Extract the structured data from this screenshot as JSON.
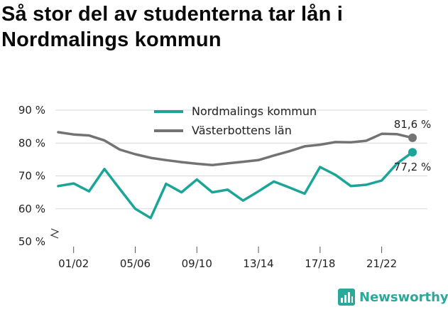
{
  "title": "Så stor del av studenterna tar lån i Nordmalings kommun",
  "brand": "Newsworthy",
  "colors": {
    "series1": "#1aa598",
    "series2": "#737374",
    "grid": "#d9d9d9",
    "text": "#222222",
    "brand": "#2aa89a"
  },
  "chart_data": {
    "type": "line",
    "x": [
      "00/01",
      "01/02",
      "02/03",
      "03/04",
      "04/05",
      "05/06",
      "06/07",
      "07/08",
      "08/09",
      "09/10",
      "10/11",
      "11/12",
      "12/13",
      "13/14",
      "14/15",
      "15/16",
      "16/17",
      "17/18",
      "18/19",
      "19/20",
      "20/21",
      "21/22",
      "22/23",
      "23/24"
    ],
    "xticks": [
      "01/02",
      "05/06",
      "09/10",
      "13/14",
      "17/18",
      "21/22"
    ],
    "yticks": [
      "50 %",
      "60 %",
      "70 %",
      "80 %",
      "90 %"
    ],
    "ylim": [
      50,
      90
    ],
    "axis_break": true,
    "legend_position": "top",
    "series": [
      {
        "name": "Nordmalings kommun",
        "values": [
          66.9,
          67.7,
          65.3,
          72.1,
          66.0,
          60.0,
          57.2,
          67.6,
          65.0,
          68.9,
          65.0,
          65.8,
          62.5,
          65.3,
          68.3,
          66.5,
          64.6,
          72.7,
          70.3,
          66.9,
          67.3,
          68.6,
          73.8,
          77.2
        ],
        "end_label": "77,2 %"
      },
      {
        "name": "Västerbottens län",
        "values": [
          83.3,
          82.6,
          82.3,
          80.8,
          78.0,
          76.6,
          75.5,
          74.8,
          74.2,
          73.7,
          73.3,
          73.8,
          74.3,
          74.8,
          76.2,
          77.5,
          79.0,
          79.5,
          80.3,
          80.2,
          80.7,
          82.8,
          82.7,
          81.6
        ],
        "end_label": "81,6 %"
      }
    ]
  }
}
